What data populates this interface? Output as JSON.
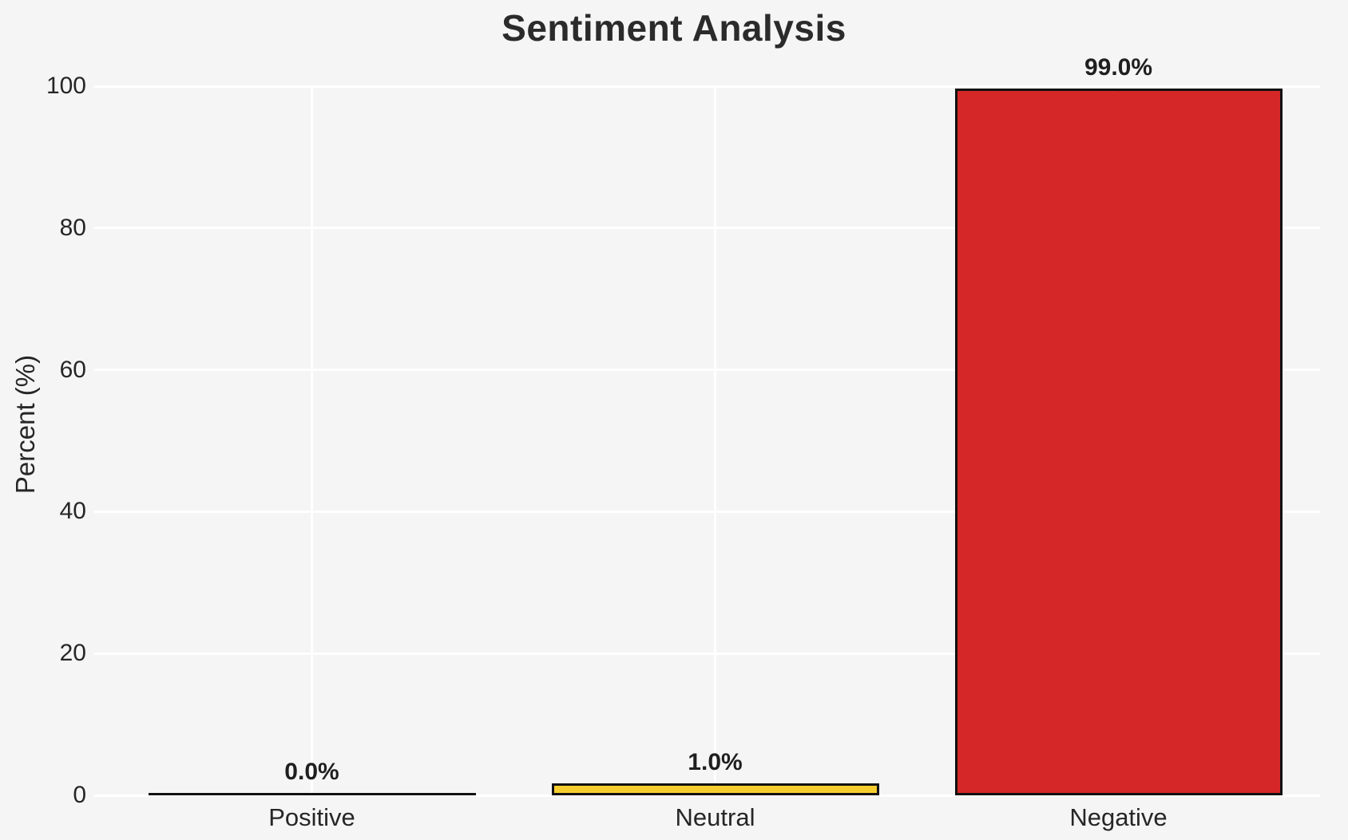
{
  "chart_data": {
    "type": "bar",
    "title": "Sentiment Analysis",
    "categories": [
      "Positive",
      "Neutral",
      "Negative"
    ],
    "values": [
      0.0,
      1.0,
      99.0
    ],
    "bar_labels": [
      "0.0%",
      "1.0%",
      "99.0%"
    ],
    "xlabel": "",
    "ylabel": "Percent (%)",
    "yticks": [
      0,
      20,
      40,
      60,
      80,
      100
    ],
    "ylim": [
      0,
      100
    ],
    "grid": true,
    "legend": false,
    "colors": {
      "bars": [
        "#F5F5F6",
        "#F5CD2F",
        "#D62728"
      ],
      "bar_edge": "#111111",
      "background": "#F5F5F6",
      "gridline": "#FFFFFF",
      "text": "#262626"
    }
  }
}
